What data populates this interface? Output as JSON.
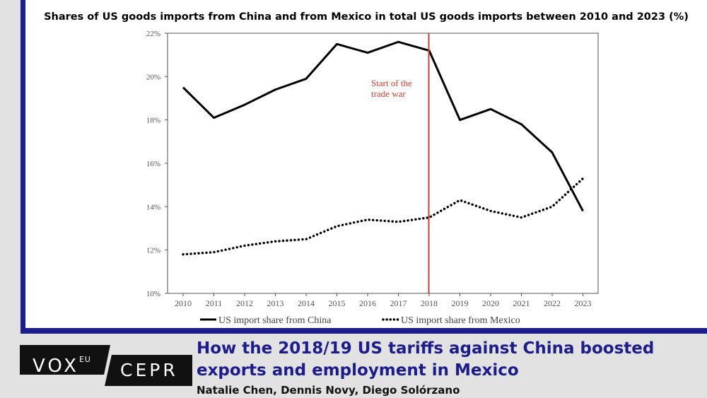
{
  "chart_data": {
    "type": "line",
    "title": "Shares of US goods imports from China and from Mexico in total US goods imports between 2010 and 2023 (%)",
    "x": [
      "2010",
      "2011",
      "2012",
      "2013",
      "2014",
      "2015",
      "2016",
      "2017",
      "2018",
      "2019",
      "2020",
      "2021",
      "2022",
      "2023"
    ],
    "ylim": [
      10,
      22
    ],
    "yticks": [
      "10%",
      "12%",
      "14%",
      "16%",
      "18%",
      "20%",
      "22%"
    ],
    "series": [
      {
        "name": "US import share from China",
        "style": "solid",
        "color": "#000000",
        "values": [
          19.5,
          18.1,
          18.7,
          19.4,
          19.9,
          21.5,
          21.1,
          21.6,
          21.2,
          18.0,
          18.5,
          17.8,
          16.5,
          13.8
        ]
      },
      {
        "name": "US import share from Mexico",
        "style": "dotted",
        "color": "#000000",
        "values": [
          11.8,
          11.9,
          12.2,
          12.4,
          12.5,
          13.1,
          13.4,
          13.3,
          13.5,
          14.3,
          13.8,
          13.5,
          14.0,
          15.3
        ]
      }
    ],
    "annotation": {
      "text_line1": "Start of the",
      "text_line2": "trade war",
      "x": "2018",
      "color": "#e03a2f"
    },
    "legend": "bottom",
    "grid": false
  },
  "footer": {
    "vox_text": "VOX",
    "vox_sup": "EU",
    "cepr_text": "CEPR",
    "headline": "How the 2018/19 US tariffs against China boosted exports and employment in Mexico",
    "authors": "Natalie Chen, Dennis Novy, Diego Solórzano"
  },
  "colors": {
    "frame": "#1c1c8c",
    "headline": "#1c1c8c",
    "background": "#e2e2e2"
  }
}
